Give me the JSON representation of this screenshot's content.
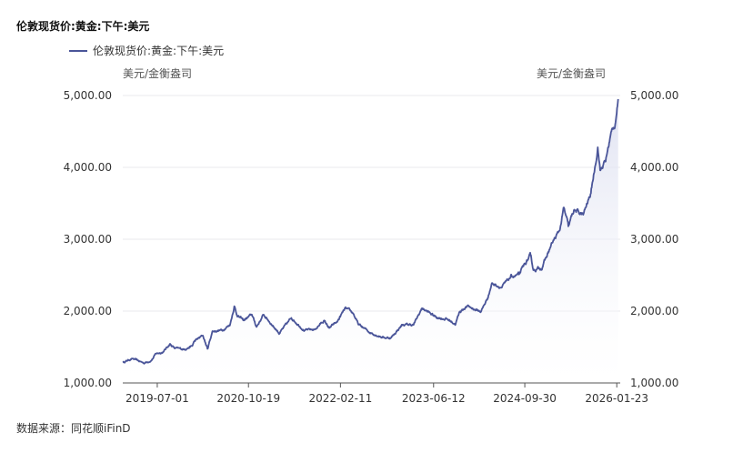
{
  "title": "伦敦现货价:黄金:下午:美元",
  "source": "数据来源：同花顺iFinD",
  "colors": {
    "line": "#4a5599",
    "area_top": "#dcdff0",
    "area_bottom": "#ffffff",
    "grid": "#e9e9ee",
    "axis": "#555555"
  },
  "chart_data": {
    "type": "area",
    "title": "伦敦现货价:黄金:下午:美元",
    "ylabel_left": "美元/金衡盎司",
    "ylabel_right": "美元/金衡盎司",
    "xlabel": "",
    "ylim": [
      1000,
      5000
    ],
    "yticks": [
      1000,
      2000,
      3000,
      4000,
      5000
    ],
    "ytick_labels": [
      "1,000.00",
      "2,000.00",
      "3,000.00",
      "4,000.00",
      "5,000.00"
    ],
    "xlim": [
      "2019-01-02",
      "2026-02-10"
    ],
    "xticks": [
      "2019-07-01",
      "2020-10-19",
      "2022-02-11",
      "2023-06-12",
      "2024-09-30",
      "2026-01-23"
    ],
    "grid": true,
    "legend_position": "top-left",
    "series": [
      {
        "name": "伦敦现货价:黄金:下午:美元",
        "points": [
          [
            "2019-01-02",
            1285
          ],
          [
            "2019-02-20",
            1340
          ],
          [
            "2019-04-25",
            1275
          ],
          [
            "2019-06-03",
            1320
          ],
          [
            "2019-06-25",
            1410
          ],
          [
            "2019-08-01",
            1430
          ],
          [
            "2019-09-04",
            1540
          ],
          [
            "2019-10-01",
            1480
          ],
          [
            "2019-11-20",
            1470
          ],
          [
            "2019-12-31",
            1515
          ],
          [
            "2020-01-08",
            1575
          ],
          [
            "2020-02-24",
            1660
          ],
          [
            "2020-03-19",
            1475
          ],
          [
            "2020-04-14",
            1720
          ],
          [
            "2020-06-01",
            1735
          ],
          [
            "2020-07-15",
            1810
          ],
          [
            "2020-08-06",
            2067
          ],
          [
            "2020-08-20",
            1940
          ],
          [
            "2020-09-24",
            1870
          ],
          [
            "2020-11-06",
            1950
          ],
          [
            "2020-11-30",
            1780
          ],
          [
            "2021-01-06",
            1950
          ],
          [
            "2021-03-30",
            1690
          ],
          [
            "2021-05-31",
            1905
          ],
          [
            "2021-08-09",
            1730
          ],
          [
            "2021-09-30",
            1745
          ],
          [
            "2021-11-16",
            1865
          ],
          [
            "2021-12-15",
            1765
          ],
          [
            "2022-01-25",
            1850
          ],
          [
            "2022-03-08",
            2040
          ],
          [
            "2022-04-18",
            1970
          ],
          [
            "2022-05-16",
            1810
          ],
          [
            "2022-07-21",
            1695
          ],
          [
            "2022-09-28",
            1630
          ],
          [
            "2022-11-03",
            1630
          ],
          [
            "2022-12-30",
            1810
          ],
          [
            "2023-02-28",
            1810
          ],
          [
            "2023-04-13",
            2040
          ],
          [
            "2023-06-29",
            1910
          ],
          [
            "2023-08-21",
            1890
          ],
          [
            "2023-10-05",
            1820
          ],
          [
            "2023-10-27",
            1995
          ],
          [
            "2023-12-04",
            2070
          ],
          [
            "2024-02-14",
            1990
          ],
          [
            "2024-03-20",
            2180
          ],
          [
            "2024-04-12",
            2390
          ],
          [
            "2024-06-03",
            2330
          ],
          [
            "2024-07-17",
            2470
          ],
          [
            "2024-08-30",
            2510
          ],
          [
            "2024-10-30",
            2780
          ],
          [
            "2024-11-14",
            2570
          ],
          [
            "2024-12-31",
            2610
          ],
          [
            "2025-02-20",
            2950
          ],
          [
            "2025-03-31",
            3120
          ],
          [
            "2025-04-22",
            3440
          ],
          [
            "2025-05-15",
            3180
          ],
          [
            "2025-06-13",
            3400
          ],
          [
            "2025-08-01",
            3340
          ],
          [
            "2025-09-10",
            3640
          ],
          [
            "2025-10-16",
            4280
          ],
          [
            "2025-10-28",
            3960
          ],
          [
            "2025-11-24",
            4080
          ],
          [
            "2025-12-26",
            4500
          ],
          [
            "2026-01-15",
            4600
          ],
          [
            "2026-01-30",
            4950
          ]
        ]
      }
    ]
  }
}
